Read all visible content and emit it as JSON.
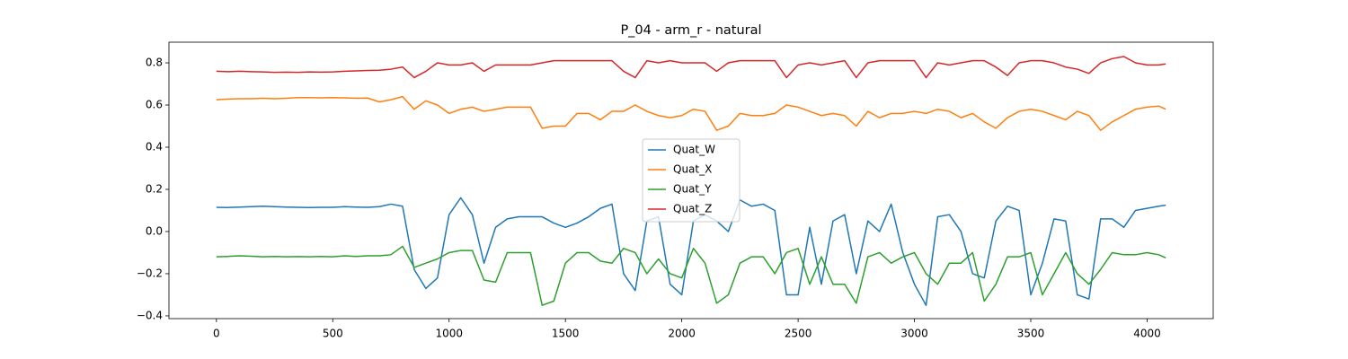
{
  "chart_data": {
    "type": "line",
    "title": "P_04 - arm_r - natural",
    "x": [
      0,
      50,
      100,
      150,
      200,
      250,
      300,
      350,
      400,
      450,
      500,
      550,
      600,
      650,
      700,
      750,
      800,
      850,
      900,
      950,
      1000,
      1050,
      1100,
      1150,
      1200,
      1250,
      1300,
      1350,
      1400,
      1450,
      1500,
      1550,
      1600,
      1650,
      1700,
      1750,
      1800,
      1850,
      1900,
      1950,
      2000,
      2050,
      2100,
      2150,
      2200,
      2250,
      2300,
      2350,
      2400,
      2450,
      2500,
      2550,
      2600,
      2650,
      2700,
      2750,
      2800,
      2850,
      2900,
      2950,
      3000,
      3050,
      3100,
      3150,
      3200,
      3250,
      3300,
      3350,
      3400,
      3450,
      3500,
      3550,
      3600,
      3650,
      3700,
      3750,
      3800,
      3850,
      3900,
      3950,
      4000,
      4050,
      4080
    ],
    "series": [
      {
        "name": "Quat_W",
        "color": "#1f77b4",
        "values": [
          0.115,
          0.114,
          0.116,
          0.118,
          0.12,
          0.118,
          0.116,
          0.115,
          0.114,
          0.115,
          0.115,
          0.118,
          0.116,
          0.115,
          0.118,
          0.13,
          0.12,
          -0.18,
          -0.27,
          -0.22,
          0.08,
          0.16,
          0.08,
          -0.15,
          0.02,
          0.06,
          0.07,
          0.07,
          0.07,
          0.04,
          0.02,
          0.04,
          0.07,
          0.11,
          0.13,
          -0.2,
          -0.28,
          0.05,
          0.07,
          -0.25,
          -0.3,
          0.05,
          0.08,
          0.05,
          0.0,
          0.15,
          0.12,
          0.13,
          0.1,
          -0.3,
          -0.3,
          0.02,
          -0.25,
          0.05,
          0.08,
          -0.2,
          0.05,
          0.0,
          0.13,
          -0.1,
          -0.25,
          -0.35,
          0.07,
          0.08,
          0.0,
          -0.2,
          -0.22,
          0.05,
          0.12,
          0.1,
          -0.3,
          -0.15,
          0.06,
          0.05,
          -0.3,
          -0.32,
          0.06,
          0.06,
          0.02,
          0.1,
          0.11,
          0.12,
          0.125
        ]
      },
      {
        "name": "Quat_X",
        "color": "#ff7f0e",
        "values": [
          0.625,
          0.628,
          0.63,
          0.63,
          0.632,
          0.63,
          0.632,
          0.635,
          0.635,
          0.634,
          0.635,
          0.634,
          0.632,
          0.633,
          0.615,
          0.625,
          0.64,
          0.58,
          0.62,
          0.6,
          0.56,
          0.58,
          0.59,
          0.57,
          0.58,
          0.59,
          0.59,
          0.59,
          0.49,
          0.5,
          0.5,
          0.56,
          0.56,
          0.53,
          0.57,
          0.57,
          0.6,
          0.57,
          0.55,
          0.54,
          0.55,
          0.58,
          0.57,
          0.48,
          0.5,
          0.56,
          0.55,
          0.55,
          0.56,
          0.6,
          0.59,
          0.57,
          0.55,
          0.56,
          0.55,
          0.5,
          0.57,
          0.54,
          0.56,
          0.56,
          0.57,
          0.56,
          0.58,
          0.57,
          0.54,
          0.56,
          0.52,
          0.49,
          0.54,
          0.57,
          0.58,
          0.57,
          0.55,
          0.53,
          0.57,
          0.55,
          0.48,
          0.52,
          0.55,
          0.58,
          0.59,
          0.595,
          0.58
        ]
      },
      {
        "name": "Quat_Y",
        "color": "#2ca02c",
        "values": [
          -0.12,
          -0.118,
          -0.115,
          -0.117,
          -0.12,
          -0.118,
          -0.12,
          -0.119,
          -0.12,
          -0.118,
          -0.12,
          -0.115,
          -0.118,
          -0.115,
          -0.115,
          -0.11,
          -0.07,
          -0.17,
          -0.15,
          -0.13,
          -0.1,
          -0.09,
          -0.09,
          -0.23,
          -0.24,
          -0.1,
          -0.1,
          -0.1,
          -0.35,
          -0.33,
          -0.15,
          -0.1,
          -0.1,
          -0.14,
          -0.15,
          -0.08,
          -0.1,
          -0.2,
          -0.13,
          -0.2,
          -0.22,
          -0.08,
          -0.15,
          -0.34,
          -0.3,
          -0.15,
          -0.12,
          -0.12,
          -0.2,
          -0.1,
          -0.08,
          -0.25,
          -0.12,
          -0.25,
          -0.25,
          -0.34,
          -0.12,
          -0.1,
          -0.15,
          -0.12,
          -0.1,
          -0.2,
          -0.25,
          -0.15,
          -0.15,
          -0.1,
          -0.33,
          -0.25,
          -0.12,
          -0.12,
          -0.1,
          -0.3,
          -0.2,
          -0.1,
          -0.2,
          -0.25,
          -0.18,
          -0.1,
          -0.11,
          -0.11,
          -0.1,
          -0.11,
          -0.125
        ]
      },
      {
        "name": "Quat_Z",
        "color": "#d62728",
        "values": [
          0.76,
          0.758,
          0.76,
          0.758,
          0.757,
          0.755,
          0.756,
          0.755,
          0.757,
          0.756,
          0.757,
          0.76,
          0.762,
          0.764,
          0.765,
          0.77,
          0.78,
          0.73,
          0.76,
          0.8,
          0.79,
          0.79,
          0.8,
          0.76,
          0.79,
          0.79,
          0.79,
          0.79,
          0.8,
          0.81,
          0.81,
          0.81,
          0.81,
          0.81,
          0.81,
          0.76,
          0.73,
          0.81,
          0.8,
          0.81,
          0.8,
          0.8,
          0.8,
          0.76,
          0.8,
          0.81,
          0.81,
          0.81,
          0.81,
          0.73,
          0.79,
          0.8,
          0.79,
          0.8,
          0.81,
          0.73,
          0.8,
          0.81,
          0.81,
          0.81,
          0.81,
          0.73,
          0.8,
          0.79,
          0.8,
          0.81,
          0.81,
          0.78,
          0.74,
          0.8,
          0.81,
          0.81,
          0.8,
          0.78,
          0.77,
          0.75,
          0.8,
          0.82,
          0.83,
          0.8,
          0.79,
          0.79,
          0.795
        ]
      }
    ],
    "xlim": [
      -204,
      4284
    ],
    "xticks": [
      0,
      500,
      1000,
      1500,
      2000,
      2500,
      3000,
      3500,
      4000
    ],
    "ylim": [
      -0.413,
      0.898
    ],
    "yticks": [
      {
        "value": -0.4,
        "label": "−0.4"
      },
      {
        "value": -0.2,
        "label": "−0.2"
      },
      {
        "value": 0,
        "label": "0.0"
      },
      0.2,
      0.4,
      0.6,
      0.8
    ],
    "legend": "center"
  }
}
